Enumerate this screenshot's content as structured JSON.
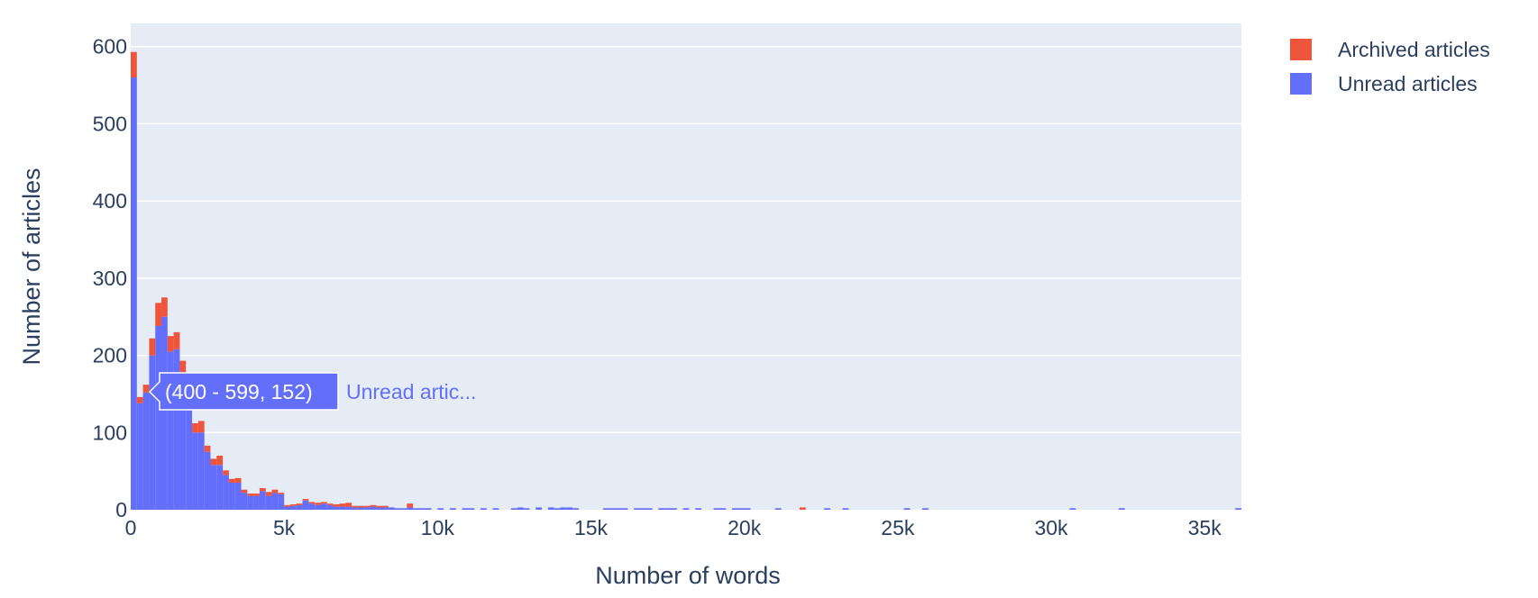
{
  "colors": {
    "plot_bg": "#e5ecf6",
    "grid": "#ffffff",
    "text": "#2a3f5f",
    "archived": "#ef553b",
    "unread": "#636efa"
  },
  "hover": {
    "label": "(400 - 599, 152)",
    "series_label": "Unread artic..."
  },
  "chart_data": {
    "type": "bar",
    "barmode": "stack",
    "xlabel": "Number of words",
    "ylabel": "Number of articles",
    "xlim": [
      0,
      36200
    ],
    "ylim": [
      0,
      630
    ],
    "bin_width": 200,
    "x_ticks": [
      {
        "value": 0,
        "label": "0"
      },
      {
        "value": 5000,
        "label": "5k"
      },
      {
        "value": 10000,
        "label": "10k"
      },
      {
        "value": 15000,
        "label": "15k"
      },
      {
        "value": 20000,
        "label": "20k"
      },
      {
        "value": 25000,
        "label": "25k"
      },
      {
        "value": 30000,
        "label": "30k"
      },
      {
        "value": 35000,
        "label": "35k"
      }
    ],
    "y_ticks": [
      {
        "value": 0,
        "label": "0"
      },
      {
        "value": 100,
        "label": "100"
      },
      {
        "value": 200,
        "label": "200"
      },
      {
        "value": 300,
        "label": "300"
      },
      {
        "value": 400,
        "label": "400"
      },
      {
        "value": 500,
        "label": "500"
      },
      {
        "value": 600,
        "label": "600"
      }
    ],
    "grid": true,
    "legend_position": "top-right",
    "series": [
      {
        "name": "Unread articles",
        "x": [
          0,
          200,
          400,
          600,
          800,
          1000,
          1200,
          1400,
          1600,
          1800,
          2000,
          2200,
          2400,
          2600,
          2800,
          3000,
          3200,
          3400,
          3600,
          3800,
          4000,
          4200,
          4400,
          4600,
          4800,
          5000,
          5200,
          5400,
          5600,
          5800,
          6000,
          6200,
          6400,
          6600,
          6800,
          7000,
          7200,
          7400,
          7600,
          7800,
          8000,
          8200,
          8400,
          8600,
          8800,
          9000,
          9200,
          9400,
          9600,
          10000,
          10400,
          10800,
          11000,
          11400,
          11800,
          12400,
          12600,
          12800,
          13200,
          13600,
          13800,
          14000,
          14200,
          14400,
          15400,
          15600,
          15800,
          16000,
          16400,
          16600,
          16800,
          17200,
          17400,
          17600,
          18000,
          18400,
          19000,
          19200,
          19600,
          19800,
          20000,
          21000,
          22600,
          23200,
          25200,
          25800,
          30600,
          32200,
          36000
        ],
        "y": [
          560,
          138,
          152,
          200,
          238,
          250,
          205,
          208,
          175,
          150,
          100,
          100,
          75,
          58,
          58,
          45,
          35,
          35,
          22,
          18,
          18,
          24,
          18,
          22,
          20,
          4,
          5,
          6,
          12,
          8,
          6,
          8,
          6,
          4,
          4,
          4,
          3,
          3,
          3,
          4,
          3,
          3,
          3,
          2,
          2,
          3,
          2,
          2,
          2,
          2,
          2,
          2,
          2,
          2,
          2,
          2,
          3,
          2,
          3,
          3,
          2,
          3,
          3,
          2,
          2,
          2,
          2,
          2,
          2,
          2,
          2,
          2,
          2,
          2,
          2,
          2,
          2,
          2,
          2,
          2,
          2,
          2,
          2,
          2,
          2,
          2,
          2,
          2,
          2
        ]
      },
      {
        "name": "Archived articles",
        "x": [
          0,
          200,
          400,
          600,
          800,
          1000,
          1200,
          1400,
          1600,
          1800,
          2000,
          2200,
          2400,
          2600,
          2800,
          3000,
          3200,
          3400,
          3600,
          3800,
          4000,
          4200,
          4400,
          4600,
          4800,
          5000,
          5200,
          5400,
          5600,
          5800,
          6000,
          6200,
          6400,
          6600,
          6800,
          7000,
          7200,
          7400,
          7600,
          7800,
          8000,
          8200,
          8400,
          8600,
          8800,
          9000,
          9200,
          9400,
          9600,
          10000,
          10400,
          10800,
          11000,
          11400,
          11800,
          12400,
          12600,
          12800,
          13200,
          13600,
          13800,
          14000,
          14200,
          14400,
          15400,
          15600,
          15800,
          16000,
          16400,
          16600,
          16800,
          17200,
          17400,
          17600,
          18000,
          18400,
          19000,
          19200,
          19600,
          19800,
          20000,
          21000,
          21800,
          22600,
          23200,
          25200,
          25800,
          30600,
          32200,
          36000
        ],
        "y": [
          33,
          8,
          10,
          22,
          30,
          25,
          20,
          22,
          18,
          15,
          12,
          15,
          8,
          8,
          12,
          6,
          5,
          6,
          4,
          3,
          3,
          4,
          5,
          4,
          2,
          2,
          2,
          2,
          2,
          2,
          3,
          2,
          2,
          3,
          4,
          5,
          2,
          2,
          2,
          2,
          2,
          2,
          0,
          0,
          0,
          5,
          0,
          0,
          0,
          0,
          0,
          0,
          0,
          0,
          0,
          0,
          0,
          0,
          0,
          0,
          0,
          0,
          0,
          0,
          0,
          0,
          0,
          0,
          0,
          0,
          0,
          0,
          0,
          0,
          0,
          0,
          0,
          0,
          0,
          0,
          0,
          0,
          3,
          0,
          0,
          0,
          0,
          0,
          0,
          0
        ]
      }
    ]
  }
}
